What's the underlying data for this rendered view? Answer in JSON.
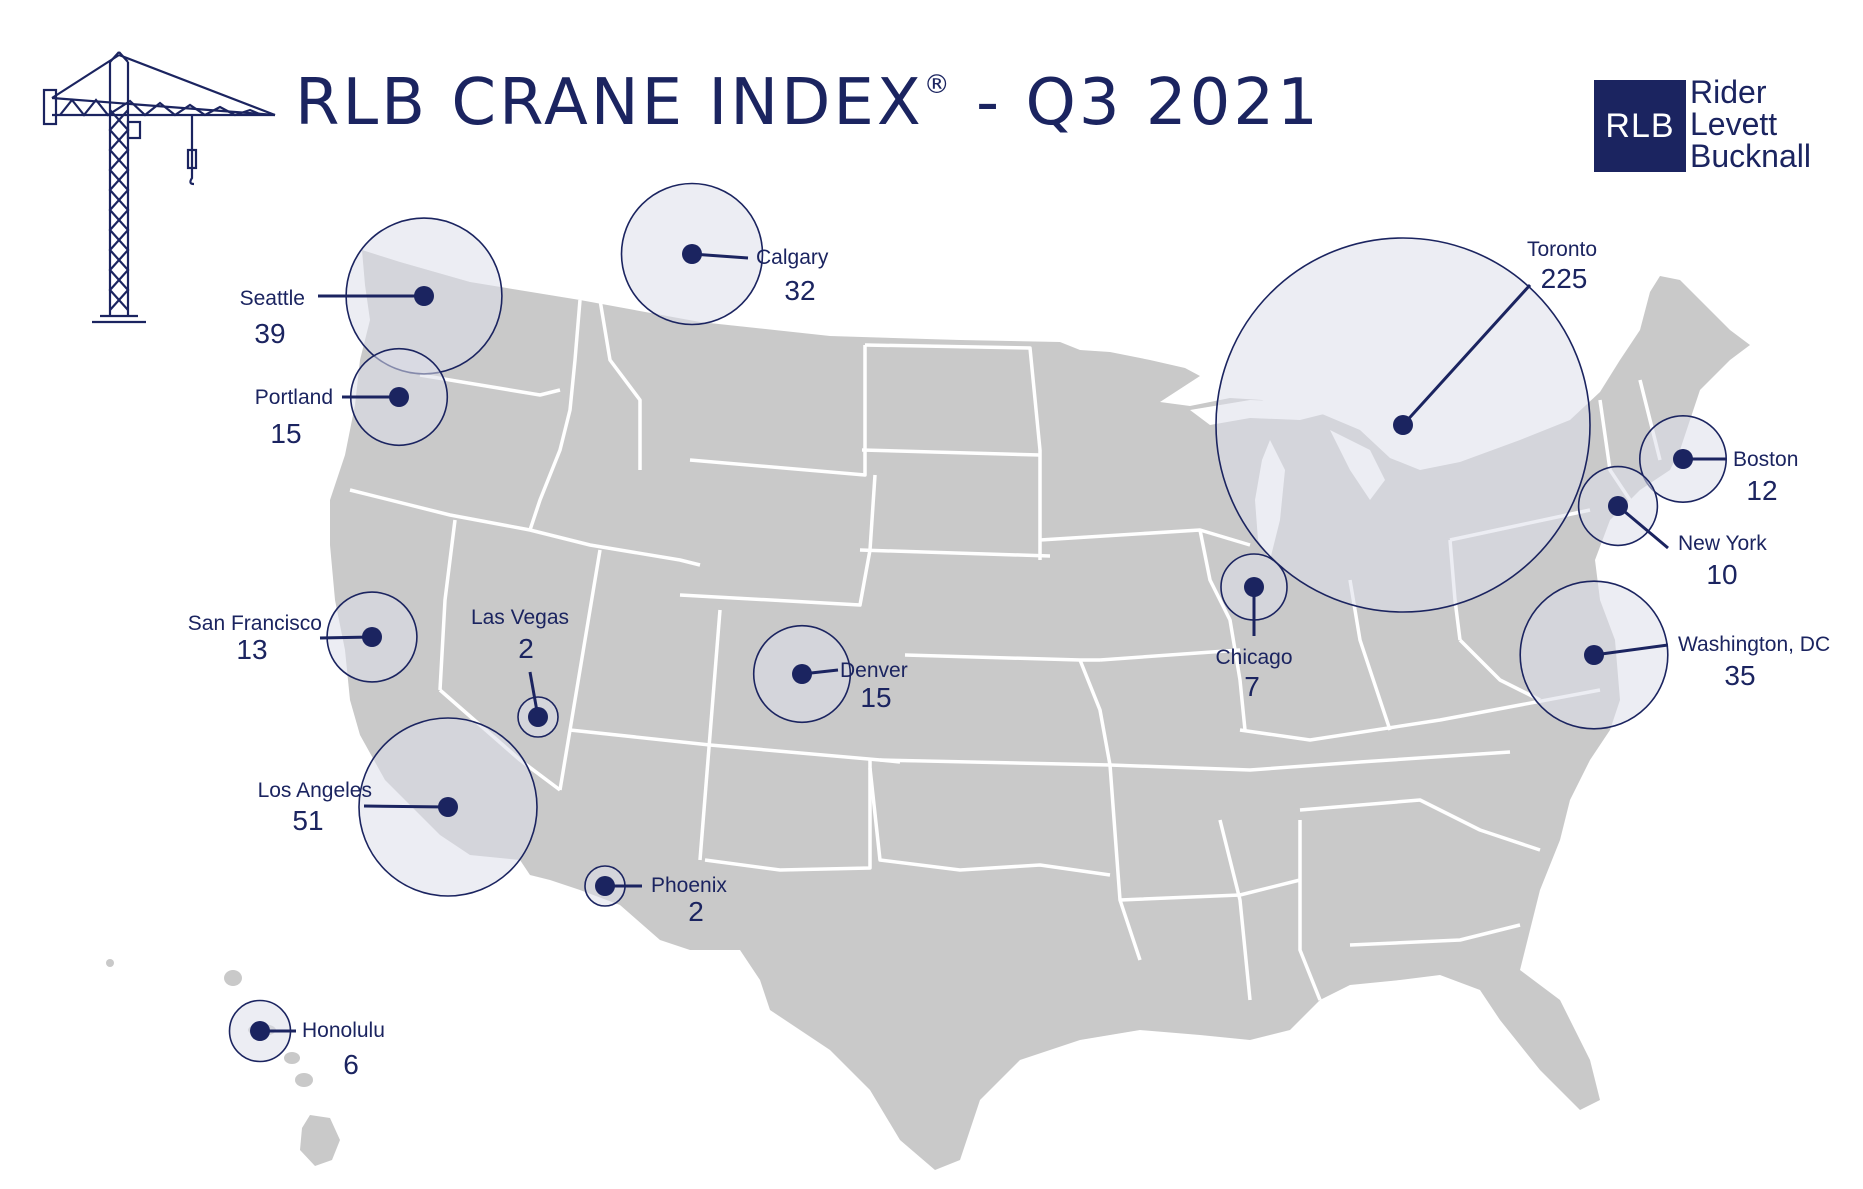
{
  "header": {
    "title": "RLB CRANE INDEX",
    "registered": "®",
    "subtitle": " - Q3 2021"
  },
  "logo": {
    "mark": "RLB",
    "lines": [
      "Rider",
      "Levett",
      "Bucknall"
    ]
  },
  "colors": {
    "navy": "#1b2460",
    "land": "#c9c9c9",
    "border": "#ffffff",
    "circle_fill": "#dcdfe9"
  },
  "icons": {
    "crane": "tower-crane-icon"
  },
  "cities": [
    {
      "name": "Seattle",
      "count": "39",
      "value": 39
    },
    {
      "name": "Portland",
      "count": "15",
      "value": 15
    },
    {
      "name": "Calgary",
      "count": "32",
      "value": 32
    },
    {
      "name": "Toronto",
      "count": "225",
      "value": 225
    },
    {
      "name": "Boston",
      "count": "12",
      "value": 12
    },
    {
      "name": "New York",
      "count": "10",
      "value": 10
    },
    {
      "name": "Washington, DC",
      "count": "35",
      "value": 35
    },
    {
      "name": "Chicago",
      "count": "7",
      "value": 7
    },
    {
      "name": "Denver",
      "count": "15",
      "value": 15
    },
    {
      "name": "Las Vegas",
      "count": "2",
      "value": 2
    },
    {
      "name": "San Francisco",
      "count": "13",
      "value": 13
    },
    {
      "name": "Los Angeles",
      "count": "51",
      "value": 51
    },
    {
      "name": "Phoenix",
      "count": "2",
      "value": 2
    },
    {
      "name": "Honolulu",
      "count": "6",
      "value": 6
    }
  ]
}
